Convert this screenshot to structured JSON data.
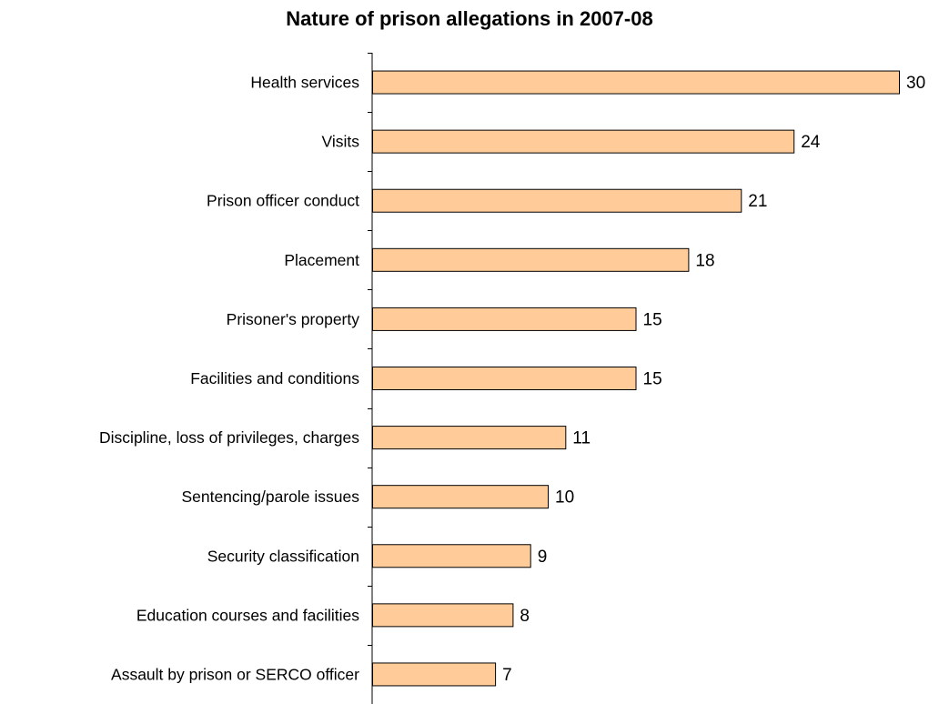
{
  "chart_data": {
    "type": "bar",
    "orientation": "horizontal",
    "title": "Nature of prison allegations in 2007-08",
    "xlabel": "",
    "ylabel": "",
    "categories": [
      "Health services",
      "Visits",
      "Prison officer conduct",
      "Placement",
      "Prisoner's property",
      "Facilities and conditions",
      "Discipline, loss of privileges, charges",
      "Sentencing/parole issues",
      "Security classification",
      "Education courses and facilities",
      "Assault by prison or SERCO officer"
    ],
    "values": [
      30,
      24,
      21,
      18,
      15,
      15,
      11,
      10,
      9,
      8,
      7
    ],
    "xlim": [
      0,
      30
    ],
    "grid": false,
    "legend": "none",
    "data_labels": true,
    "bar_color": "#FFCC99",
    "bar_edge_color": "#000000"
  }
}
